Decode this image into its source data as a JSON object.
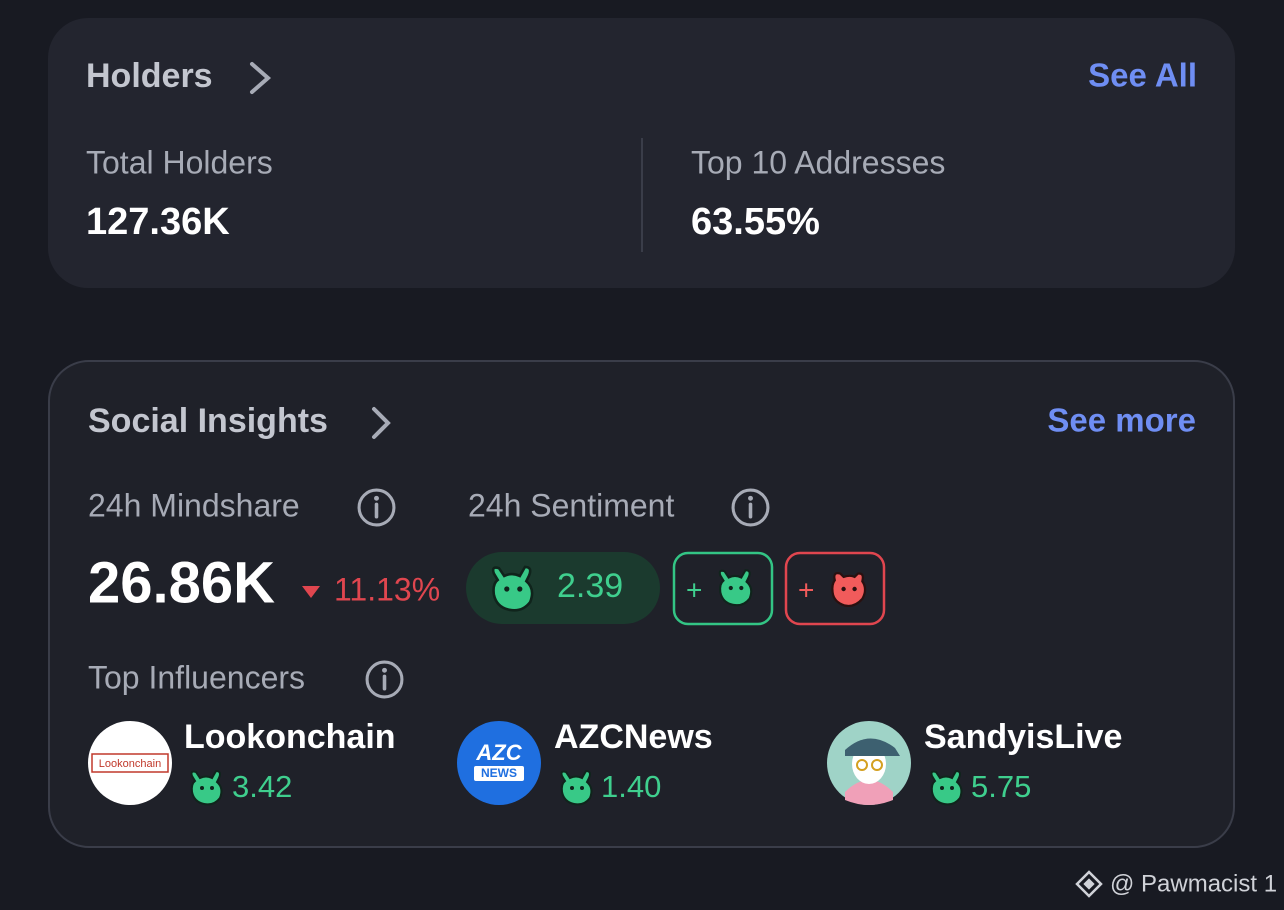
{
  "holders": {
    "title": "Holders",
    "link": "See All",
    "stats": [
      {
        "label": "Total Holders",
        "value": "127.36K"
      },
      {
        "label": "Top 10 Addresses",
        "value": "63.55%"
      }
    ]
  },
  "social": {
    "title": "Social Insights",
    "link": "See more",
    "mindshare": {
      "label": "24h Mindshare",
      "value": "26.86K",
      "change": "11.13%"
    },
    "sentiment": {
      "label": "24h Sentiment",
      "score": "2.39",
      "bull_button": "+",
      "bear_button": "+"
    },
    "influencers_title": "Top Influencers",
    "influencers": [
      {
        "name": "Lookonchain",
        "score": "3.42",
        "avatar_text": "Lookonchain"
      },
      {
        "name": "AZCNews",
        "score": "1.40",
        "avatar_text": "AZC",
        "avatar_subtext": "NEWS"
      },
      {
        "name": "SandyisLive",
        "score": "5.75"
      }
    ]
  },
  "watermark": "@ Pawmacist 1"
}
